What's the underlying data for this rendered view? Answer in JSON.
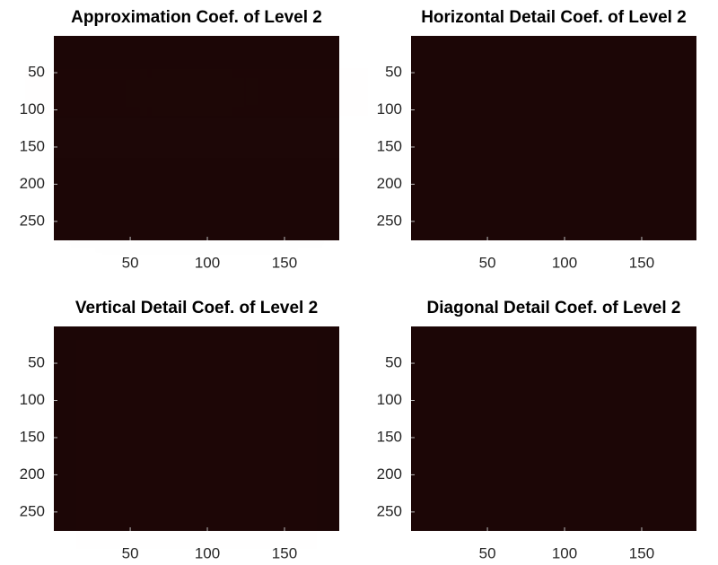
{
  "chart_data": [
    {
      "type": "image",
      "title": "Approximation Coef. of Level 2",
      "xlim": [
        0.5,
        185.5
      ],
      "ylim": [
        0.5,
        275.5
      ],
      "y_reversed": true,
      "xticks": [
        50,
        100,
        150
      ],
      "yticks": [
        50,
        100,
        150,
        200,
        250
      ]
    },
    {
      "type": "image",
      "title": "Horizontal Detail Coef. of Level 2",
      "xlim": [
        0.5,
        185.5
      ],
      "ylim": [
        0.5,
        275.5
      ],
      "y_reversed": true,
      "xticks": [
        50,
        100,
        150
      ],
      "yticks": [
        50,
        100,
        150,
        200,
        250
      ]
    },
    {
      "type": "image",
      "title": "Vertical Detail Coef. of Level 2",
      "xlim": [
        0.5,
        185.5
      ],
      "ylim": [
        0.5,
        275.5
      ],
      "y_reversed": true,
      "xticks": [
        50,
        100,
        150
      ],
      "yticks": [
        50,
        100,
        150,
        200,
        250
      ]
    },
    {
      "type": "image",
      "title": "Diagonal Detail Coef. of Level 2",
      "xlim": [
        0.5,
        185.5
      ],
      "ylim": [
        0.5,
        275.5
      ],
      "y_reversed": true,
      "xticks": [
        50,
        100,
        150
      ],
      "yticks": [
        50,
        100,
        150,
        200,
        250
      ]
    }
  ]
}
